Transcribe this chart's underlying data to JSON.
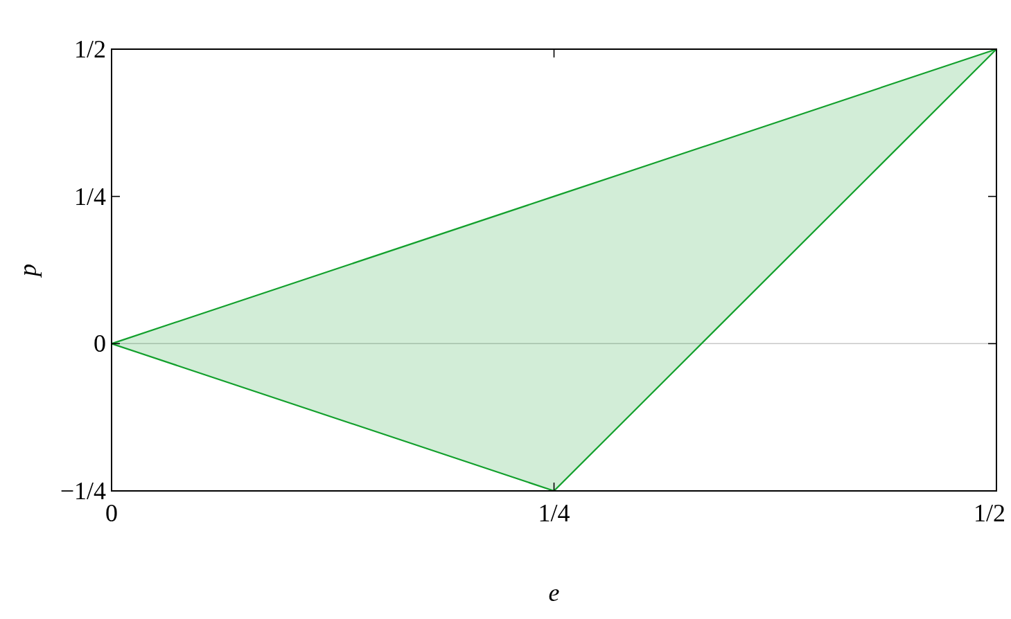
{
  "chart_data": {
    "type": "line",
    "xlabel": "e",
    "ylabel": "p",
    "xlim": [
      0,
      0.5
    ],
    "ylim": [
      -0.25,
      0.5
    ],
    "xticks": [
      0,
      {
        "value": 0.25,
        "label": "1/4"
      },
      {
        "value": 0.5,
        "label": "1/2"
      }
    ],
    "yticks": [
      {
        "value": -0.25,
        "label": "−1/4"
      },
      0,
      {
        "value": 0.25,
        "label": "1/4"
      },
      {
        "value": 0.5,
        "label": "1/2"
      }
    ],
    "line_style": "solid",
    "series": [
      {
        "color": "#12a02c",
        "x": [
          0,
          0.25,
          0.5
        ],
        "values": [
          0,
          0.25,
          0.5
        ],
        "lower": [
          0,
          -0.25,
          0.5
        ],
        "upper": [
          0,
          0.25,
          0.5
        ]
      },
      {
        "color": "#12a02c",
        "x": [
          0,
          0.25,
          0.5
        ],
        "values": [
          0,
          -0.25,
          0.5
        ]
      }
    ],
    "ref_lines": [
      {
        "axis": "y",
        "value": 0,
        "color": "#c8c8c8"
      }
    ]
  }
}
